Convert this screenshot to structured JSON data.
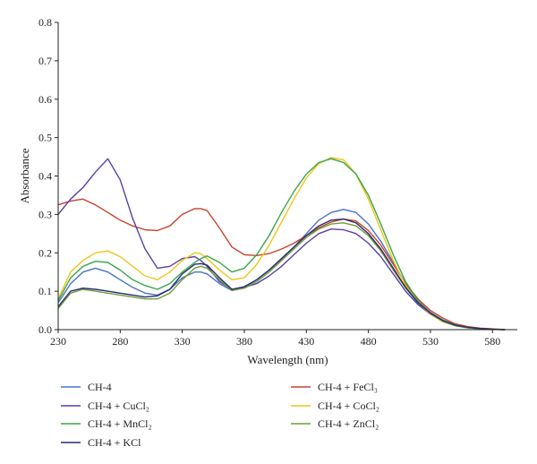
{
  "chart_data": {
    "type": "line",
    "xlabel": "Wavelength (nm)",
    "ylabel": "Absorbance",
    "xlim": [
      230,
      600
    ],
    "ylim": [
      0,
      0.8
    ],
    "x_ticks": [
      "230",
      "280",
      "330",
      "380",
      "430",
      "480",
      "530",
      "580"
    ],
    "y_ticks": [
      "0.0",
      "0.1",
      "0.2",
      "0.3",
      "0.4",
      "0.5",
      "0.6",
      "0.7",
      "0.8"
    ],
    "grid": false,
    "legend_position": "bottom",
    "x": [
      230,
      240,
      250,
      260,
      270,
      280,
      290,
      300,
      310,
      320,
      330,
      340,
      345,
      350,
      360,
      370,
      380,
      390,
      400,
      410,
      420,
      430,
      440,
      450,
      460,
      470,
      480,
      490,
      500,
      510,
      520,
      530,
      540,
      550,
      560,
      570,
      580,
      590
    ],
    "series": [
      {
        "name": "CH-4",
        "color": "#4a72c4",
        "values": [
          0.07,
          0.12,
          0.15,
          0.16,
          0.15,
          0.13,
          0.11,
          0.095,
          0.09,
          0.105,
          0.135,
          0.15,
          0.15,
          0.145,
          0.12,
          0.102,
          0.11,
          0.13,
          0.155,
          0.185,
          0.215,
          0.25,
          0.285,
          0.305,
          0.313,
          0.305,
          0.275,
          0.23,
          0.175,
          0.12,
          0.075,
          0.045,
          0.025,
          0.012,
          0.006,
          0.003,
          0.001,
          0.0
        ]
      },
      {
        "name": "CH-4 + FeCl₃",
        "color": "#c8432a",
        "values": [
          0.325,
          0.335,
          0.34,
          0.325,
          0.305,
          0.285,
          0.27,
          0.26,
          0.258,
          0.27,
          0.3,
          0.315,
          0.315,
          0.31,
          0.265,
          0.215,
          0.195,
          0.193,
          0.198,
          0.21,
          0.225,
          0.245,
          0.265,
          0.28,
          0.288,
          0.283,
          0.258,
          0.22,
          0.17,
          0.12,
          0.08,
          0.05,
          0.03,
          0.015,
          0.008,
          0.004,
          0.002,
          0.0
        ]
      },
      {
        "name": "CH-4 + CuCl₂",
        "color": "#5b3fa8",
        "values": [
          0.3,
          0.34,
          0.37,
          0.41,
          0.445,
          0.39,
          0.29,
          0.21,
          0.16,
          0.165,
          0.185,
          0.19,
          0.18,
          0.165,
          0.125,
          0.105,
          0.11,
          0.12,
          0.14,
          0.165,
          0.195,
          0.225,
          0.25,
          0.262,
          0.26,
          0.25,
          0.225,
          0.19,
          0.145,
          0.1,
          0.065,
          0.04,
          0.022,
          0.011,
          0.005,
          0.002,
          0.001,
          0.0
        ]
      },
      {
        "name": "CH-4 + CoCl₂",
        "color": "#f2c318",
        "values": [
          0.08,
          0.15,
          0.18,
          0.2,
          0.205,
          0.19,
          0.165,
          0.14,
          0.13,
          0.15,
          0.18,
          0.2,
          0.198,
          0.185,
          0.155,
          0.13,
          0.135,
          0.17,
          0.22,
          0.28,
          0.34,
          0.395,
          0.432,
          0.448,
          0.442,
          0.405,
          0.34,
          0.26,
          0.18,
          0.115,
          0.07,
          0.04,
          0.02,
          0.01,
          0.005,
          0.002,
          0.001,
          0.0
        ]
      },
      {
        "name": "CH-4 + MnCl₂",
        "color": "#3aa64a",
        "values": [
          0.075,
          0.135,
          0.165,
          0.178,
          0.175,
          0.155,
          0.13,
          0.115,
          0.105,
          0.12,
          0.15,
          0.175,
          0.185,
          0.192,
          0.175,
          0.15,
          0.16,
          0.195,
          0.245,
          0.305,
          0.36,
          0.405,
          0.435,
          0.445,
          0.435,
          0.405,
          0.35,
          0.275,
          0.195,
          0.125,
          0.075,
          0.042,
          0.022,
          0.01,
          0.005,
          0.002,
          0.001,
          0.0
        ]
      },
      {
        "name": "CH-4 + ZnCl₂",
        "color": "#6f9d38",
        "values": [
          0.055,
          0.095,
          0.105,
          0.1,
          0.095,
          0.09,
          0.085,
          0.08,
          0.08,
          0.095,
          0.13,
          0.16,
          0.165,
          0.16,
          0.13,
          0.102,
          0.108,
          0.125,
          0.15,
          0.18,
          0.21,
          0.24,
          0.262,
          0.275,
          0.278,
          0.27,
          0.245,
          0.205,
          0.155,
          0.108,
          0.07,
          0.043,
          0.024,
          0.012,
          0.006,
          0.003,
          0.001,
          0.0
        ]
      },
      {
        "name": "CH-4 + KCl",
        "color": "#262c73",
        "values": [
          0.06,
          0.1,
          0.108,
          0.105,
          0.1,
          0.095,
          0.09,
          0.085,
          0.088,
          0.105,
          0.145,
          0.17,
          0.172,
          0.168,
          0.135,
          0.105,
          0.112,
          0.13,
          0.155,
          0.185,
          0.215,
          0.245,
          0.27,
          0.285,
          0.288,
          0.278,
          0.25,
          0.21,
          0.16,
          0.11,
          0.07,
          0.043,
          0.024,
          0.012,
          0.006,
          0.003,
          0.001,
          0.0
        ]
      }
    ]
  }
}
